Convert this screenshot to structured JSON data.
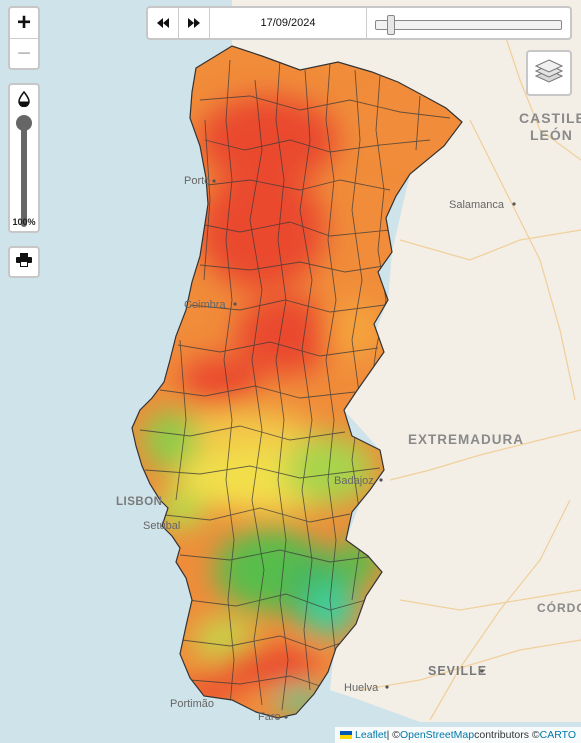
{
  "controls": {
    "zoom_in": "+",
    "zoom_out": "−",
    "opacity_label": "100%",
    "opacity_value": 1.0,
    "print_icon": "printer-icon",
    "layers_icon": "layers-icon"
  },
  "timebar": {
    "back_icon": "rewind-icon",
    "forward_icon": "fast-forward-icon",
    "date": "17/09/2024"
  },
  "places": {
    "castile_line1": "CASTILE",
    "castile_line2": "LEÓN",
    "extremadura": "EXTREMADURA",
    "porto": "Porto",
    "salamanca": "Salamanca",
    "coimbra": "Coimbra",
    "lisbon": "LISBON",
    "setubal": "Setúbal",
    "badajoz": "Badajoz",
    "cordoba": "CÓRDO",
    "seville": "SEVILLE",
    "huelva": "Huelva",
    "portimao": "Portimão",
    "faro": "Faro"
  },
  "attribution": {
    "leaflet": "Leaflet",
    "sep1": " | © ",
    "osm": "OpenStreetMap",
    "mid": " contributors © ",
    "carto": "CARTO"
  },
  "colors": {
    "sea": "#cfe3ea",
    "land": "#f3efe7",
    "red": "#ea4a2e",
    "orange": "#f08c3a",
    "yellow": "#f2df4b",
    "green": "#58bd4c",
    "teal": "#3fcf9b"
  }
}
